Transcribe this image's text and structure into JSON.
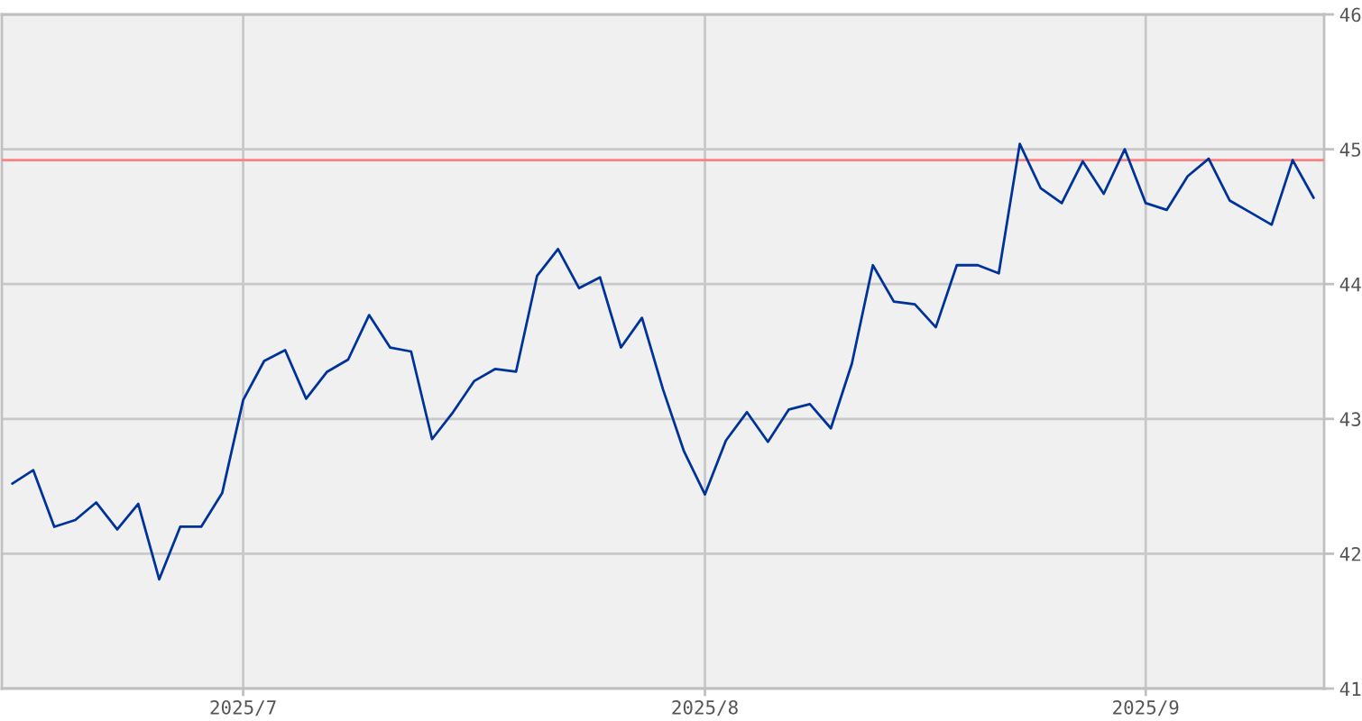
{
  "chart_data": {
    "type": "line",
    "categories": [
      null,
      null,
      null,
      null,
      null,
      null,
      null,
      null,
      null,
      null,
      null,
      "2025/7",
      null,
      null,
      null,
      null,
      null,
      null,
      null,
      null,
      null,
      null,
      null,
      null,
      null,
      null,
      null,
      null,
      null,
      null,
      null,
      null,
      null,
      "2025/8",
      null,
      null,
      null,
      null,
      null,
      null,
      null,
      null,
      null,
      null,
      null,
      null,
      null,
      null,
      null,
      null,
      null,
      null,
      null,
      null,
      "2025/9",
      null,
      null,
      null,
      null,
      null,
      null,
      null,
      null
    ],
    "series": [
      {
        "color": "#003399",
        "values": [
          42.52,
          42.62,
          42.2,
          42.25,
          42.38,
          42.18,
          42.37,
          41.81,
          42.2,
          42.2,
          42.45,
          43.14,
          43.43,
          43.51,
          43.15,
          43.35,
          43.44,
          43.77,
          43.53,
          43.5,
          42.85,
          43.05,
          43.28,
          43.37,
          43.35,
          44.06,
          44.26,
          43.97,
          44.05,
          43.53,
          43.75,
          43.22,
          42.76,
          42.44,
          42.84,
          43.05,
          42.83,
          43.07,
          43.11,
          42.93,
          43.41,
          44.14,
          43.87,
          43.85,
          43.68,
          44.14,
          44.14,
          44.08,
          45.04,
          44.71,
          44.6,
          44.91,
          44.67,
          45.0,
          44.6,
          44.55,
          44.8,
          44.93,
          44.62,
          44.53,
          44.44,
          44.92,
          44.64
        ]
      }
    ],
    "ylim": [
      41,
      46
    ],
    "yticks": [
      41,
      42,
      43,
      44,
      45,
      46
    ],
    "ref_lines": [
      {
        "axis": "y",
        "value": 44.92,
        "color": "#ff8080"
      }
    ],
    "grid": true
  }
}
